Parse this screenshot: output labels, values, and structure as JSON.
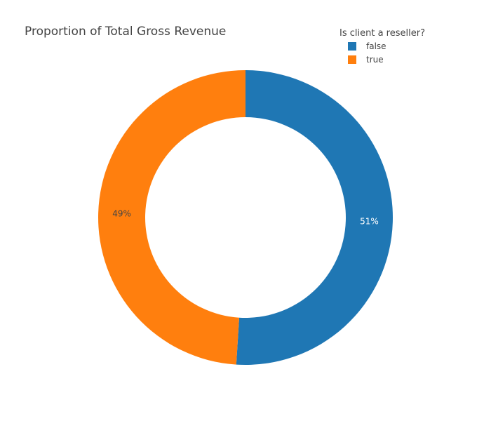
{
  "chart_data": {
    "type": "pie",
    "hole": true,
    "title": "Proportion of Total Gross Revenue",
    "legend": {
      "title": "Is client a reseller?",
      "placement": "top-right"
    },
    "slices": [
      {
        "label": "false",
        "value": 51,
        "text": "51%",
        "color": "#1f77b4",
        "text_color": "#ffffff"
      },
      {
        "label": "true",
        "value": 49,
        "text": "49%",
        "color": "#ff7f0e",
        "text_color": "#444444"
      }
    ]
  }
}
